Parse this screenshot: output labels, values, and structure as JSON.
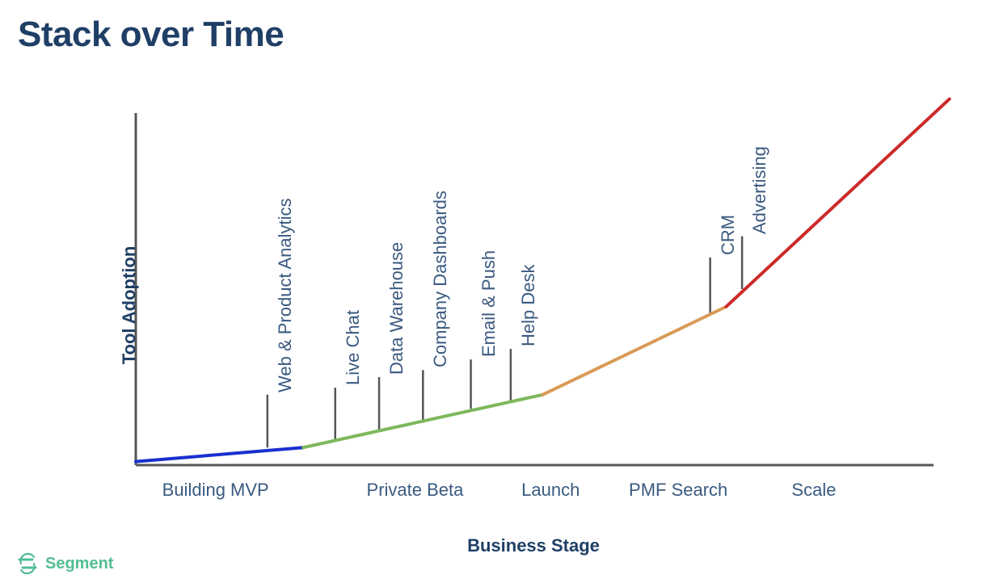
{
  "page": {
    "title": "Stack over Time"
  },
  "brand": {
    "name": "Segment",
    "icon": "segment-logo-icon",
    "color": "#52bd94"
  },
  "chart_data": {
    "type": "line",
    "xlabel": "Business Stage",
    "ylabel": "Tool Adoption",
    "xlim": [
      0,
      10
    ],
    "ylim": [
      0,
      10
    ],
    "grid": false,
    "stages": [
      {
        "label": "Building MVP",
        "x": 1.0
      },
      {
        "label": "Private Beta",
        "x": 3.5
      },
      {
        "label": "Launch",
        "x": 5.2
      },
      {
        "label": "PMF Search",
        "x": 6.8
      },
      {
        "label": "Scale",
        "x": 8.5
      }
    ],
    "segments": [
      {
        "color": "#1a2fcf",
        "points": [
          [
            0,
            0.1
          ],
          [
            2.1,
            0.5
          ]
        ]
      },
      {
        "color": "#7db85a",
        "points": [
          [
            2.1,
            0.5
          ],
          [
            5.1,
            2.0
          ]
        ]
      },
      {
        "color": "#d99a56",
        "points": [
          [
            5.1,
            2.0
          ],
          [
            7.4,
            4.5
          ]
        ]
      },
      {
        "color": "#cc2a2a",
        "points": [
          [
            7.4,
            4.5
          ],
          [
            10.2,
            10.4
          ]
        ]
      }
    ],
    "tools": [
      {
        "label": "Web & Product Analytics",
        "x": 1.65,
        "base": 0.5,
        "top": 2.0
      },
      {
        "label": "Live Chat",
        "x": 2.5,
        "base": 0.7,
        "top": 2.2
      },
      {
        "label": "Data Warehouse",
        "x": 3.05,
        "base": 1.0,
        "top": 2.5
      },
      {
        "label": "Company  Dashboards",
        "x": 3.6,
        "base": 1.2,
        "top": 2.7
      },
      {
        "label": "Email & Push",
        "x": 4.2,
        "base": 1.6,
        "top": 3.0
      },
      {
        "label": "Help Desk",
        "x": 4.7,
        "base": 1.8,
        "top": 3.3
      },
      {
        "label": "CRM",
        "x": 7.2,
        "base": 4.3,
        "top": 5.9
      },
      {
        "label": "Advertising",
        "x": 7.6,
        "base": 5.0,
        "top": 6.5
      }
    ]
  }
}
